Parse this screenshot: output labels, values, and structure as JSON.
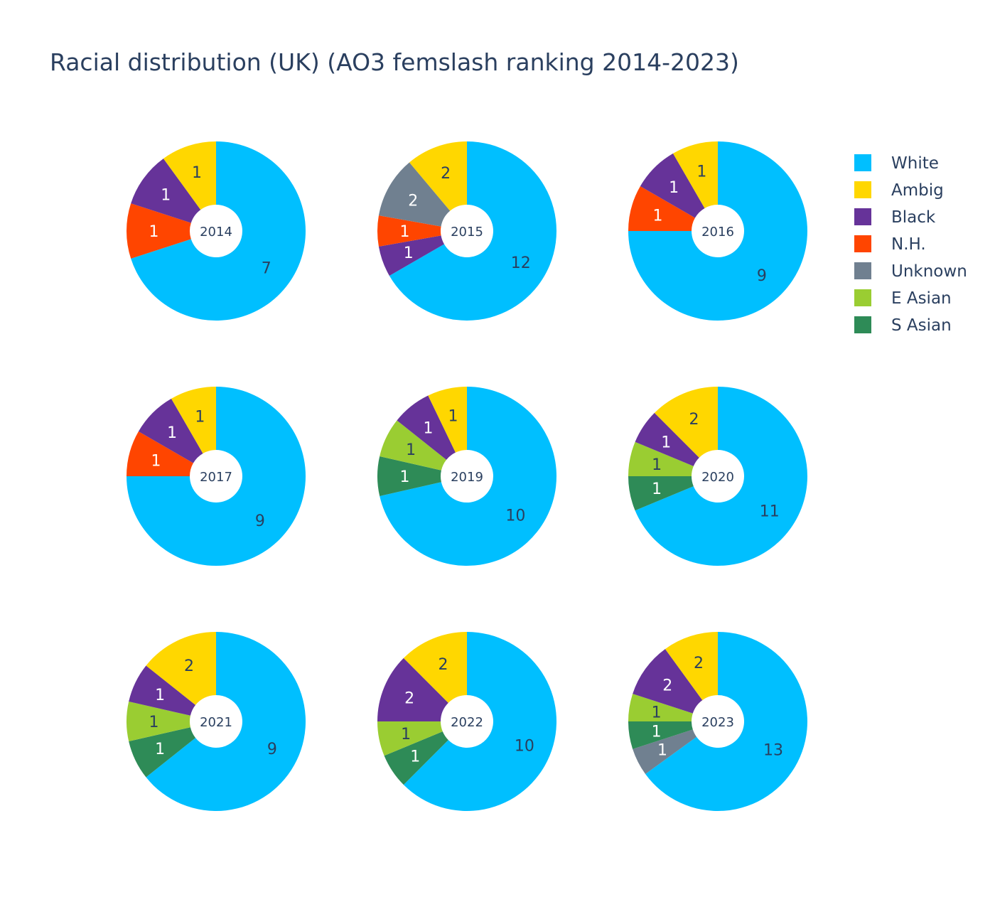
{
  "chart_data": {
    "type": "pie",
    "title": "Racial distribution (UK) (AO3 femslash ranking 2014-2023)",
    "hole": true,
    "legend_position": "top-right",
    "legend": [
      "White",
      "Ambig",
      "Black",
      "N.H.",
      "Unknown",
      "E Asian",
      "S Asian"
    ],
    "colors": {
      "White": "#00bfff",
      "Ambig": "#ffd700",
      "Black": "#663399",
      "N.H.": "#ff4500",
      "Unknown": "#708090",
      "E Asian": "#9acd32",
      "S Asian": "#2e8b57"
    },
    "pies": [
      {
        "year": "2014",
        "slices": [
          {
            "name": "White",
            "value": 7
          },
          {
            "name": "N.H.",
            "value": 1
          },
          {
            "name": "Black",
            "value": 1
          },
          {
            "name": "Ambig",
            "value": 1
          }
        ]
      },
      {
        "year": "2015",
        "slices": [
          {
            "name": "White",
            "value": 12
          },
          {
            "name": "Black",
            "value": 1
          },
          {
            "name": "N.H.",
            "value": 1
          },
          {
            "name": "Unknown",
            "value": 2
          },
          {
            "name": "Ambig",
            "value": 2
          }
        ]
      },
      {
        "year": "2016",
        "slices": [
          {
            "name": "White",
            "value": 9
          },
          {
            "name": "N.H.",
            "value": 1
          },
          {
            "name": "Black",
            "value": 1
          },
          {
            "name": "Ambig",
            "value": 1
          }
        ]
      },
      {
        "year": "2017",
        "slices": [
          {
            "name": "White",
            "value": 9
          },
          {
            "name": "N.H.",
            "value": 1
          },
          {
            "name": "Black",
            "value": 1
          },
          {
            "name": "Ambig",
            "value": 1
          }
        ]
      },
      {
        "year": "2019",
        "slices": [
          {
            "name": "White",
            "value": 10
          },
          {
            "name": "S Asian",
            "value": 1
          },
          {
            "name": "E Asian",
            "value": 1
          },
          {
            "name": "Black",
            "value": 1
          },
          {
            "name": "Ambig",
            "value": 1
          }
        ]
      },
      {
        "year": "2020",
        "slices": [
          {
            "name": "White",
            "value": 11
          },
          {
            "name": "S Asian",
            "value": 1
          },
          {
            "name": "E Asian",
            "value": 1
          },
          {
            "name": "Black",
            "value": 1
          },
          {
            "name": "Ambig",
            "value": 2
          }
        ]
      },
      {
        "year": "2021",
        "slices": [
          {
            "name": "White",
            "value": 9
          },
          {
            "name": "S Asian",
            "value": 1
          },
          {
            "name": "E Asian",
            "value": 1
          },
          {
            "name": "Black",
            "value": 1
          },
          {
            "name": "Ambig",
            "value": 2
          }
        ]
      },
      {
        "year": "2022",
        "slices": [
          {
            "name": "White",
            "value": 10
          },
          {
            "name": "S Asian",
            "value": 1
          },
          {
            "name": "E Asian",
            "value": 1
          },
          {
            "name": "Black",
            "value": 2
          },
          {
            "name": "Ambig",
            "value": 2
          }
        ]
      },
      {
        "year": "2023",
        "slices": [
          {
            "name": "White",
            "value": 13
          },
          {
            "name": "Unknown",
            "value": 1
          },
          {
            "name": "S Asian",
            "value": 1
          },
          {
            "name": "E Asian",
            "value": 1
          },
          {
            "name": "Black",
            "value": 2
          },
          {
            "name": "Ambig",
            "value": 2
          }
        ]
      }
    ]
  }
}
